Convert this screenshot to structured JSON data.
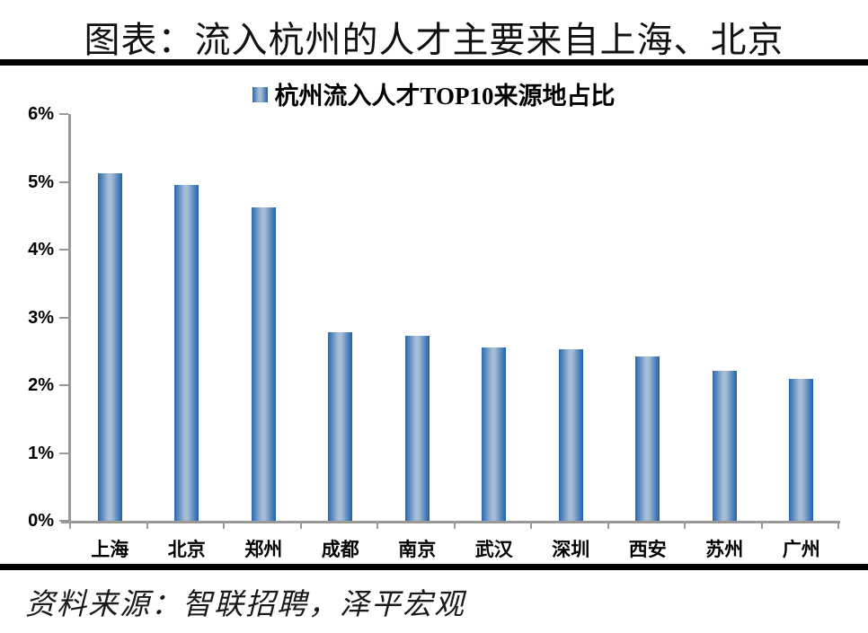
{
  "title": "图表：流入杭州的人才主要来自上海、北京",
  "source": "资料来源：智联招聘，泽平宏观",
  "colors": {
    "bar_edge": "#2569b3",
    "bar_edge_right": "#1d61ae",
    "bar_center": "#a6bcd5",
    "axis": "#999999",
    "divider": "#000000",
    "text": "#000000"
  },
  "chart_data": {
    "type": "bar",
    "title": "",
    "legend": "杭州流入人才TOP10来源地占比",
    "legend_position": "top",
    "categories": [
      "上海",
      "北京",
      "郑州",
      "成都",
      "南京",
      "武汉",
      "深圳",
      "西安",
      "苏州",
      "广州"
    ],
    "values": [
      5.12,
      4.95,
      4.62,
      2.78,
      2.73,
      2.56,
      2.53,
      2.42,
      2.21,
      2.09
    ],
    "unit": "%",
    "xlabel": "",
    "ylabel": "",
    "ylim": [
      0,
      6
    ],
    "ytick_step": 1,
    "ytick_labels": [
      "0%",
      "1%",
      "2%",
      "3%",
      "4%",
      "5%",
      "6%"
    ],
    "grid": false
  }
}
